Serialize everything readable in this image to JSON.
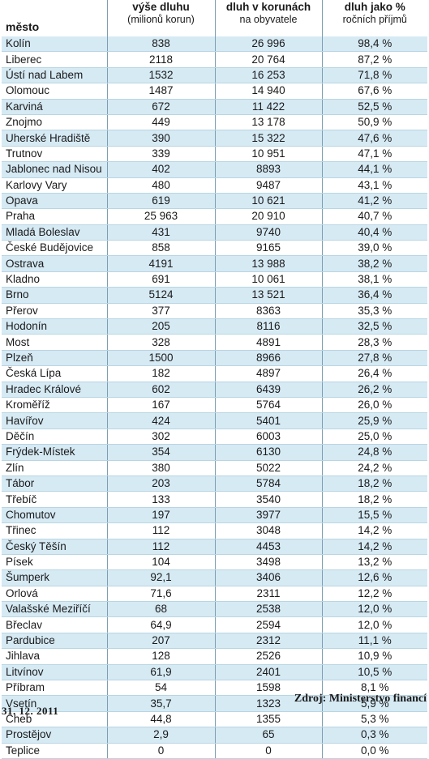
{
  "header": {
    "col_city": "město",
    "col_debt": "výše dluhu",
    "col_debt_sub": "(milionů korun)",
    "col_percapita": "dluh v korunách",
    "col_percapita_sub": "na obyvatele",
    "col_ratio": "dluh jako %",
    "col_ratio_sub": "ročních příjmů"
  },
  "rows": [
    {
      "city": "Kolín",
      "debt": "838",
      "per_capita": "26 996",
      "ratio": "98,4 %"
    },
    {
      "city": "Liberec",
      "debt": "2118",
      "per_capita": "20 764",
      "ratio": "87,2 %"
    },
    {
      "city": "Ústí nad Labem",
      "debt": "1532",
      "per_capita": "16 253",
      "ratio": "71,8 %"
    },
    {
      "city": "Olomouc",
      "debt": "1487",
      "per_capita": "14 940",
      "ratio": "67,6 %"
    },
    {
      "city": "Karviná",
      "debt": "672",
      "per_capita": "11 422",
      "ratio": "52,5 %"
    },
    {
      "city": "Znojmo",
      "debt": "449",
      "per_capita": "13 178",
      "ratio": "50,9 %"
    },
    {
      "city": "Uherské Hradiště",
      "debt": "390",
      "per_capita": "15 322",
      "ratio": "47,6 %"
    },
    {
      "city": "Trutnov",
      "debt": "339",
      "per_capita": "10 951",
      "ratio": "47,1 %"
    },
    {
      "city": "Jablonec nad Nisou",
      "debt": "402",
      "per_capita": "8893",
      "ratio": "44,1 %"
    },
    {
      "city": "Karlovy Vary",
      "debt": "480",
      "per_capita": "9487",
      "ratio": "43,1 %"
    },
    {
      "city": "Opava",
      "debt": "619",
      "per_capita": "10 621",
      "ratio": "41,2 %"
    },
    {
      "city": "Praha",
      "debt": "25 963",
      "per_capita": "20 910",
      "ratio": "40,7 %"
    },
    {
      "city": "Mladá Boleslav",
      "debt": "431",
      "per_capita": "9740",
      "ratio": "40,4 %"
    },
    {
      "city": "České Budějovice",
      "debt": "858",
      "per_capita": "9165",
      "ratio": "39,0 %"
    },
    {
      "city": "Ostrava",
      "debt": "4191",
      "per_capita": "13 988",
      "ratio": "38,2 %"
    },
    {
      "city": "Kladno",
      "debt": "691",
      "per_capita": "10 061",
      "ratio": "38,1 %"
    },
    {
      "city": "Brno",
      "debt": "5124",
      "per_capita": "13 521",
      "ratio": "36,4 %"
    },
    {
      "city": "Přerov",
      "debt": "377",
      "per_capita": "8363",
      "ratio": "35,3 %"
    },
    {
      "city": "Hodonín",
      "debt": "205",
      "per_capita": "8116",
      "ratio": "32,5 %"
    },
    {
      "city": "Most",
      "debt": "328",
      "per_capita": "4891",
      "ratio": "28,3 %"
    },
    {
      "city": "Plzeň",
      "debt": "1500",
      "per_capita": "8966",
      "ratio": "27,8 %"
    },
    {
      "city": "Česká Lípa",
      "debt": "182",
      "per_capita": "4897",
      "ratio": "26,4 %"
    },
    {
      "city": "Hradec Králové",
      "debt": "602",
      "per_capita": "6439",
      "ratio": "26,2 %"
    },
    {
      "city": "Kroměříž",
      "debt": "167",
      "per_capita": "5764",
      "ratio": "26,0 %"
    },
    {
      "city": "Havířov",
      "debt": "424",
      "per_capita": "5401",
      "ratio": "25,9 %"
    },
    {
      "city": "Děčín",
      "debt": "302",
      "per_capita": "6003",
      "ratio": "25,0 %"
    },
    {
      "city": "Frýdek-Místek",
      "debt": "354",
      "per_capita": "6130",
      "ratio": "24,8 %"
    },
    {
      "city": "Zlín",
      "debt": "380",
      "per_capita": "5022",
      "ratio": "24,2 %"
    },
    {
      "city": "Tábor",
      "debt": "203",
      "per_capita": "5784",
      "ratio": "18,2 %"
    },
    {
      "city": "Třebíč",
      "debt": "133",
      "per_capita": "3540",
      "ratio": "18,2 %"
    },
    {
      "city": "Chomutov",
      "debt": "197",
      "per_capita": "3977",
      "ratio": "15,5 %"
    },
    {
      "city": "Třinec",
      "debt": "112",
      "per_capita": "3048",
      "ratio": "14,2 %"
    },
    {
      "city": "Český Těšín",
      "debt": "112",
      "per_capita": "4453",
      "ratio": "14,2 %"
    },
    {
      "city": "Písek",
      "debt": "104",
      "per_capita": "3498",
      "ratio": "13,2 %"
    },
    {
      "city": "Šumperk",
      "debt": "92,1",
      "per_capita": "3406",
      "ratio": "12,6 %"
    },
    {
      "city": "Orlová",
      "debt": "71,6",
      "per_capita": "2311",
      "ratio": "12,2 %"
    },
    {
      "city": "Valašské Meziříčí",
      "debt": "68",
      "per_capita": "2538",
      "ratio": "12,0 %"
    },
    {
      "city": "Břeclav",
      "debt": "64,9",
      "per_capita": "2594",
      "ratio": "12,0 %"
    },
    {
      "city": "Pardubice",
      "debt": "207",
      "per_capita": "2312",
      "ratio": "11,1 %"
    },
    {
      "city": "Jihlava",
      "debt": "128",
      "per_capita": "2526",
      "ratio": "10,9 %"
    },
    {
      "city": "Litvínov",
      "debt": "61,9",
      "per_capita": "2401",
      "ratio": "10,5 %"
    },
    {
      "city": "Příbram",
      "debt": "54",
      "per_capita": "1598",
      "ratio": "8,1 %"
    },
    {
      "city": "Vsetín",
      "debt": "35,7",
      "per_capita": "1323",
      "ratio": "5,9 %"
    },
    {
      "city": "Cheb",
      "debt": "44,8",
      "per_capita": "1355",
      "ratio": "5,3 %"
    },
    {
      "city": "Prostějov",
      "debt": "2,9",
      "per_capita": "65",
      "ratio": "0,3 %"
    },
    {
      "city": "Teplice",
      "debt": "0",
      "per_capita": "0",
      "ratio": "0,0 %"
    }
  ],
  "footer": {
    "source": "Zdroj: Ministerstvo financí",
    "date": "31. 12. 2011"
  },
  "colors": {
    "row_stripe": "#d6eaf4",
    "divider": "#7b9fb1"
  }
}
